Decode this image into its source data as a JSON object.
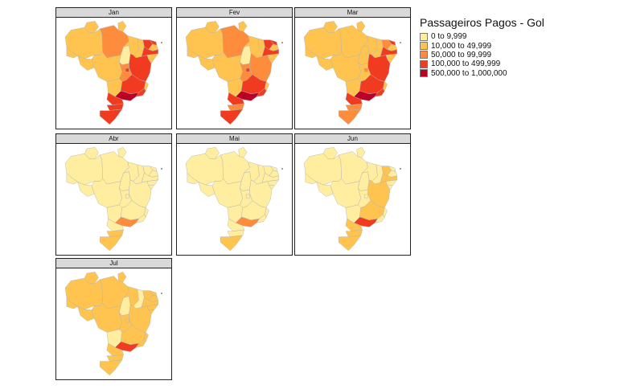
{
  "chart_data": {
    "type": "choropleth-map",
    "title": "Passageiros Pagos - Gol",
    "facets": [
      "Jan",
      "Fev",
      "Mar",
      "Abr",
      "Mai",
      "Jun",
      "Jul"
    ],
    "legend": {
      "title": "Passageiros Pagos - Gol",
      "placement": "right",
      "bins": [
        {
          "label": "0 to 9,999",
          "color": "#ffeda0"
        },
        {
          "label": "10,000 to 49,999",
          "color": "#fec44f"
        },
        {
          "label": "50,000 to 99,999",
          "color": "#fd8d3c"
        },
        {
          "label": "100,000 to 499,999",
          "color": "#f03b20"
        },
        {
          "label": "500,000 to 1,000,000",
          "color": "#bd0026"
        }
      ]
    },
    "regions": [
      "AM",
      "PA",
      "AC",
      "RO",
      "RR",
      "AP",
      "MT",
      "TO",
      "MA",
      "PI",
      "CE",
      "RN",
      "PB",
      "PE",
      "AL",
      "SE",
      "BA",
      "GO",
      "DF",
      "MS",
      "MG",
      "ES",
      "RJ",
      "SP",
      "PR",
      "SC",
      "RS"
    ],
    "bin_by_month": {
      "Jan": {
        "AM": 1,
        "PA": 2,
        "AC": 1,
        "RO": 1,
        "RR": 1,
        "AP": 1,
        "MT": 1,
        "TO": 0,
        "MA": 1,
        "PI": 1,
        "CE": 3,
        "RN": 3,
        "PB": 1,
        "PE": 3,
        "AL": 1,
        "SE": 1,
        "BA": 3,
        "GO": 2,
        "DF": 3,
        "MS": 1,
        "MG": 3,
        "ES": 1,
        "RJ": 3,
        "SP": 4,
        "PR": 3,
        "SC": 3,
        "RS": 3
      },
      "Fev": {
        "AM": 1,
        "PA": 2,
        "AC": 1,
        "RO": 1,
        "RR": 1,
        "AP": 1,
        "MT": 1,
        "TO": 0,
        "MA": 1,
        "PI": 1,
        "CE": 3,
        "RN": 3,
        "PB": 1,
        "PE": 3,
        "AL": 1,
        "SE": 1,
        "BA": 2,
        "GO": 2,
        "DF": 3,
        "MS": 1,
        "MG": 3,
        "ES": 1,
        "RJ": 3,
        "SP": 4,
        "PR": 3,
        "SC": 2,
        "RS": 3
      },
      "Mar": {
        "AM": 1,
        "PA": 1,
        "AC": 1,
        "RO": 1,
        "RR": 1,
        "AP": 1,
        "MT": 1,
        "TO": 1,
        "MA": 1,
        "PI": 1,
        "CE": 2,
        "RN": 3,
        "PB": 1,
        "PE": 3,
        "AL": 1,
        "SE": 1,
        "BA": 3,
        "GO": 1,
        "DF": 2,
        "MS": 1,
        "MG": 3,
        "ES": 1,
        "RJ": 3,
        "SP": 4,
        "PR": 3,
        "SC": 2,
        "RS": 2
      },
      "Abr": {
        "AM": 0,
        "PA": 0,
        "AC": 0,
        "RO": 0,
        "RR": 0,
        "AP": 0,
        "MT": 0,
        "TO": 0,
        "MA": 0,
        "PI": 0,
        "CE": 0,
        "RN": 0,
        "PB": 0,
        "PE": 0,
        "AL": 0,
        "SE": 0,
        "BA": 0,
        "GO": 0,
        "DF": 0,
        "MS": 0,
        "MG": 0,
        "ES": 0,
        "RJ": 0,
        "SP": 2,
        "PR": 0,
        "SC": 1,
        "RS": 1
      },
      "Mai": {
        "AM": 0,
        "PA": 0,
        "AC": 0,
        "RO": 0,
        "RR": 0,
        "AP": 0,
        "MT": 0,
        "TO": 0,
        "MA": 0,
        "PI": 0,
        "CE": 0,
        "RN": 0,
        "PB": 0,
        "PE": 0,
        "AL": 0,
        "SE": 0,
        "BA": 0,
        "GO": 0,
        "DF": 0,
        "MS": 0,
        "MG": 0,
        "ES": 0,
        "RJ": 0,
        "SP": 2,
        "PR": 0,
        "SC": 0,
        "RS": 1
      },
      "Jun": {
        "AM": 0,
        "PA": 0,
        "AC": 0,
        "RO": 0,
        "RR": 0,
        "AP": 0,
        "MT": 0,
        "TO": 0,
        "MA": 0,
        "PI": 0,
        "CE": 1,
        "RN": 0,
        "PB": 0,
        "PE": 1,
        "AL": 0,
        "SE": 0,
        "BA": 1,
        "GO": 0,
        "DF": 0,
        "MS": 0,
        "MG": 1,
        "ES": 0,
        "RJ": 0,
        "SP": 3,
        "PR": 1,
        "SC": 1,
        "RS": 1
      },
      "Jul": {
        "AM": 1,
        "PA": 1,
        "AC": 1,
        "RO": 1,
        "RR": 1,
        "AP": 1,
        "MT": 1,
        "TO": 0,
        "MA": 1,
        "PI": 0,
        "CE": 1,
        "RN": 1,
        "PB": 1,
        "PE": 1,
        "AL": 1,
        "SE": 1,
        "BA": 1,
        "GO": 1,
        "DF": 1,
        "MS": 0,
        "MG": 1,
        "ES": 1,
        "RJ": 1,
        "SP": 3,
        "PR": 1,
        "SC": 1,
        "RS": 1
      }
    }
  }
}
